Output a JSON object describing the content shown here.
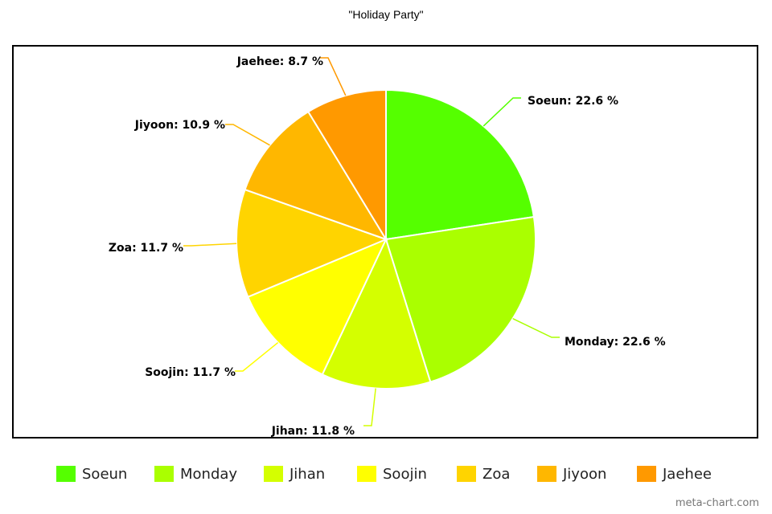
{
  "chart_data": {
    "type": "pie",
    "title": "\"Holiday Party\"",
    "categories": [
      "Soeun",
      "Monday",
      "Jihan",
      "Soojin",
      "Zoa",
      "Jiyoon",
      "Jaehee"
    ],
    "values": [
      22.6,
      22.6,
      11.8,
      11.7,
      11.7,
      10.9,
      8.7
    ],
    "colors": [
      "#55ff00",
      "#aaff00",
      "#d4ff00",
      "#ffff00",
      "#ffd400",
      "#ffb700",
      "#ff9900"
    ],
    "slice_labels": [
      "Soeun: 22.6 %",
      "Monday: 22.6 %",
      "Jihan: 11.8 %",
      "Soojin: 11.7 %",
      "Zoa: 11.7 %",
      "Jiyoon: 10.9 %",
      "Jaehee: 8.7 %"
    ],
    "legend_position": "bottom"
  },
  "watermark": "meta-chart.com"
}
